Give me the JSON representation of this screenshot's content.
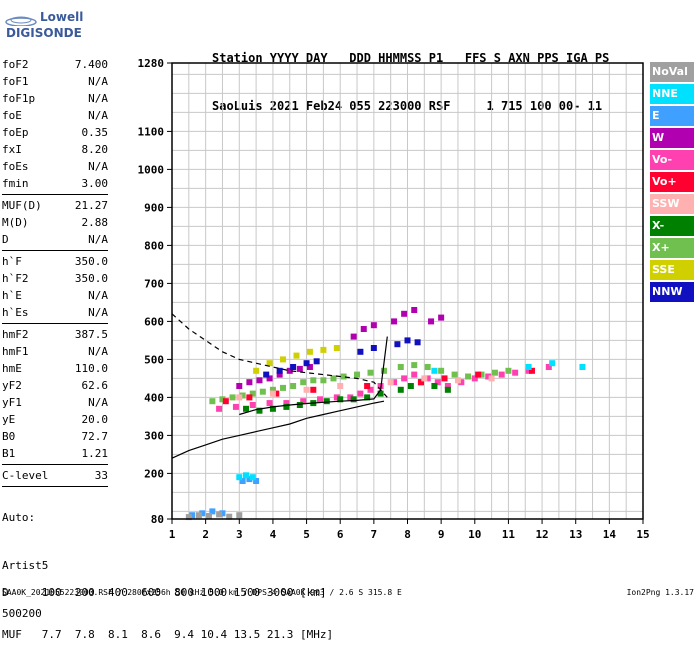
{
  "logo": {
    "line1": "Lowell",
    "line2": "DIGISONDE"
  },
  "header": {
    "line1": "Station YYYY DAY   DDD HHMMSS P1   FFS S AXN PPS IGA PS",
    "line2": "SaoLuis 2021 Feb24 055 223000 RSF     1 715 100 00- 11"
  },
  "params": {
    "group1": [
      {
        "k": "foF2",
        "v": "7.400"
      },
      {
        "k": "foF1",
        "v": "N/A"
      },
      {
        "k": "foF1p",
        "v": "N/A"
      },
      {
        "k": "foE",
        "v": "N/A"
      },
      {
        "k": "foEp",
        "v": "0.35"
      },
      {
        "k": "fxI",
        "v": "8.20"
      },
      {
        "k": "foEs",
        "v": "N/A"
      },
      {
        "k": "fmin",
        "v": "3.00"
      }
    ],
    "group2": [
      {
        "k": "MUF(D)",
        "v": "21.27"
      },
      {
        "k": "M(D)",
        "v": "2.88"
      },
      {
        "k": "D",
        "v": "N/A"
      }
    ],
    "group3": [
      {
        "k": "h`F",
        "v": "350.0"
      },
      {
        "k": "h`F2",
        "v": "350.0"
      },
      {
        "k": "h`E",
        "v": "N/A"
      },
      {
        "k": "h`Es",
        "v": "N/A"
      }
    ],
    "group4": [
      {
        "k": "hmF2",
        "v": "387.5"
      },
      {
        "k": "hmF1",
        "v": "N/A"
      },
      {
        "k": "hmE",
        "v": "110.0"
      },
      {
        "k": "yF2",
        "v": "62.6"
      },
      {
        "k": "yF1",
        "v": "N/A"
      },
      {
        "k": "yE",
        "v": "20.0"
      },
      {
        "k": "B0",
        "v": "72.7"
      },
      {
        "k": "B1",
        "v": "1.21"
      }
    ],
    "group5": [
      {
        "k": "C-level",
        "v": "33"
      }
    ]
  },
  "auto": {
    "line1": "Auto:",
    "line2": "Artist5",
    "line3": "500200"
  },
  "legend": [
    {
      "label": "NoVal",
      "color": "#a0a0a0"
    },
    {
      "label": "NNE",
      "color": "#00e0ff"
    },
    {
      "label": "E",
      "color": "#40a0ff"
    },
    {
      "label": "W",
      "color": "#b000b0"
    },
    {
      "label": "Vo-",
      "color": "#ff40b0"
    },
    {
      "label": "Vo+",
      "color": "#ff0030"
    },
    {
      "label": "SSW",
      "color": "#ffb0b0"
    },
    {
      "label": "X-",
      "color": "#008000"
    },
    {
      "label": "X+",
      "color": "#70c050"
    },
    {
      "label": "SSE",
      "color": "#d0d000"
    },
    {
      "label": "NNW",
      "color": "#1010c0"
    }
  ],
  "footer": {
    "line1": "D     100  200  400  600  800 1000 1500 3000 [km]",
    "line2": "MUF   7.7  7.8  8.1  8.6  9.4 10.4 13.5 21.3 [MHz]"
  },
  "credits": "SAA0K_2021055223000.RSF / 280fx256h 50 kHz 5.0 km / DPS-4 SAA0K 903 / 2.6 S 315.8 E",
  "version": "Ion2Png 1.3.17",
  "chart_data": {
    "type": "scatter",
    "title": "",
    "xlabel": "",
    "ylabel": "",
    "xlim": [
      1,
      15
    ],
    "ylim": [
      80,
      1280
    ],
    "x_ticks": [
      1,
      2,
      3,
      4,
      5,
      6,
      7,
      8,
      9,
      10,
      11,
      12,
      13,
      14,
      15
    ],
    "y_ticks": [
      80,
      200,
      300,
      400,
      500,
      600,
      700,
      800,
      900,
      1000,
      1100,
      1280
    ],
    "grid": true,
    "series": [
      {
        "name": "SSE",
        "color": "#d0d000",
        "x": [
          3.5,
          3.9,
          4.3,
          4.7,
          5.1,
          5.5,
          5.9
        ],
        "y": [
          470,
          490,
          500,
          510,
          520,
          525,
          530
        ]
      },
      {
        "name": "X+",
        "color": "#70c050",
        "x": [
          2.2,
          2.5,
          2.8,
          3.1,
          3.4,
          3.7,
          4.0,
          4.3,
          4.6,
          4.9,
          5.2,
          5.5,
          5.8,
          6.1,
          6.5,
          6.9,
          7.3,
          7.8,
          8.2,
          8.6,
          9.0,
          9.4,
          9.8,
          10.2,
          10.6,
          11.0
        ],
        "y": [
          390,
          395,
          400,
          405,
          410,
          415,
          420,
          425,
          430,
          440,
          445,
          445,
          450,
          455,
          460,
          465,
          470,
          480,
          485,
          480,
          470,
          460,
          455,
          460,
          465,
          470
        ]
      },
      {
        "name": "W",
        "color": "#b000b0",
        "x": [
          3.0,
          3.3,
          3.6,
          3.9,
          4.2,
          4.5,
          4.8,
          5.1,
          6.4,
          6.7,
          7.0,
          7.6,
          7.9,
          8.2,
          8.7,
          9.0
        ],
        "y": [
          430,
          440,
          445,
          450,
          460,
          470,
          475,
          480,
          560,
          580,
          590,
          600,
          620,
          630,
          600,
          610
        ]
      },
      {
        "name": "NNW",
        "color": "#1010c0",
        "x": [
          3.8,
          4.2,
          4.6,
          5.0,
          5.3,
          6.6,
          7.0,
          7.7,
          8.0,
          8.3
        ],
        "y": [
          460,
          470,
          480,
          490,
          495,
          520,
          530,
          540,
          550,
          545
        ]
      },
      {
        "name": "Vo-",
        "color": "#ff40b0",
        "x": [
          2.4,
          2.9,
          3.4,
          3.9,
          4.4,
          4.9,
          5.4,
          5.9,
          6.3,
          6.6,
          6.9,
          7.2,
          7.6,
          7.9,
          8.2,
          8.6,
          8.9,
          9.2,
          9.6,
          10.0,
          10.4,
          10.8,
          11.2,
          11.6,
          12.2
        ],
        "y": [
          370,
          375,
          380,
          385,
          385,
          390,
          395,
          400,
          400,
          410,
          420,
          430,
          440,
          450,
          460,
          450,
          440,
          430,
          440,
          450,
          455,
          460,
          465,
          470,
          480
        ]
      },
      {
        "name": "X-",
        "color": "#008000",
        "x": [
          3.2,
          3.6,
          4.0,
          4.4,
          4.8,
          5.2,
          5.6,
          6.0,
          6.4,
          6.8,
          7.2,
          7.8,
          8.1,
          8.4,
          8.8,
          9.2
        ],
        "y": [
          370,
          365,
          370,
          375,
          380,
          385,
          390,
          395,
          395,
          400,
          410,
          420,
          430,
          440,
          430,
          420
        ]
      },
      {
        "name": "E",
        "color": "#40a0ff",
        "x": [
          1.6,
          1.9,
          2.2,
          2.5,
          3.1,
          3.3,
          3.5
        ],
        "y": [
          90,
          95,
          100,
          95,
          180,
          185,
          180
        ]
      },
      {
        "name": "NoVal",
        "color": "#a0a0a0",
        "x": [
          1.5,
          1.8,
          2.1,
          2.4,
          2.7,
          3.0
        ],
        "y": [
          85,
          90,
          88,
          92,
          86,
          90
        ]
      },
      {
        "name": "Vo+",
        "color": "#ff0030",
        "x": [
          2.6,
          3.3,
          4.1,
          5.2,
          6.8,
          8.4,
          9.1,
          10.1,
          11.7
        ],
        "y": [
          390,
          400,
          410,
          420,
          430,
          440,
          450,
          460,
          470
        ]
      },
      {
        "name": "SSW",
        "color": "#ffb0b0",
        "x": [
          3.0,
          4.0,
          5.0,
          6.0,
          7.5,
          8.5,
          9.5,
          10.5
        ],
        "y": [
          400,
          410,
          420,
          430,
          440,
          450,
          445,
          450
        ]
      },
      {
        "name": "NNE",
        "color": "#00e0ff",
        "x": [
          3.0,
          3.2,
          3.4,
          8.8,
          11.6,
          12.3,
          13.2
        ],
        "y": [
          190,
          195,
          190,
          470,
          480,
          490,
          480
        ]
      }
    ],
    "trace_solid": {
      "x": [
        1.0,
        1.5,
        2.0,
        2.5,
        3.0,
        3.5,
        4.0,
        4.5,
        5.0,
        5.5,
        6.0,
        6.5,
        7.0,
        7.3
      ],
      "y": [
        240,
        260,
        275,
        290,
        300,
        310,
        320,
        330,
        345,
        355,
        365,
        375,
        385,
        390
      ]
    },
    "trace_dashed": {
      "x": [
        1.0,
        1.5,
        2.0,
        2.5,
        3.0,
        3.5,
        4.0,
        4.5,
        5.0,
        5.5,
        6.0,
        6.5,
        7.0,
        7.4
      ],
      "y": [
        620,
        580,
        550,
        520,
        500,
        490,
        480,
        470,
        465,
        460,
        455,
        450,
        440,
        400
      ]
    },
    "trace_h": {
      "x": [
        3.0,
        3.5,
        4.0,
        4.5,
        5.0,
        5.5,
        6.0,
        6.5,
        7.0,
        7.2,
        7.4
      ],
      "y": [
        355,
        368,
        375,
        380,
        384,
        387,
        390,
        392,
        396,
        420,
        560
      ]
    }
  }
}
